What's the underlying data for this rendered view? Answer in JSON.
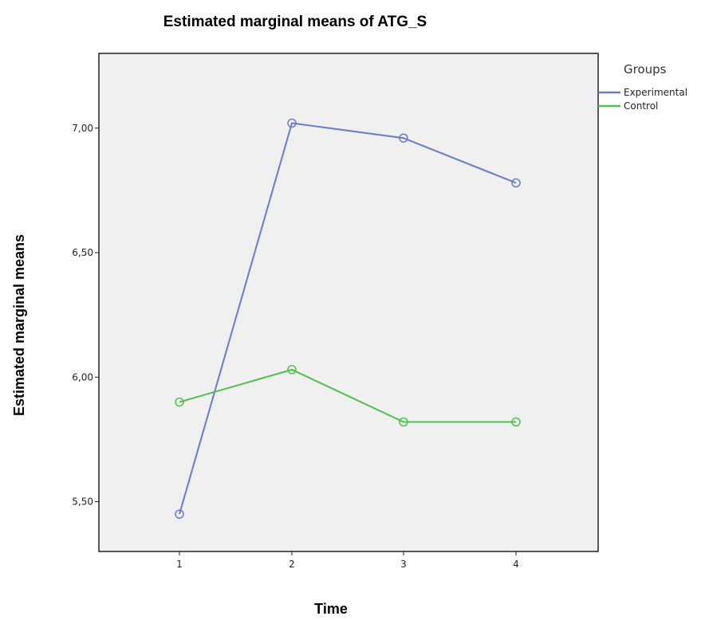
{
  "chart_data": {
    "type": "line",
    "title": "Estimated marginal means of ATG_S",
    "xlabel": "Time",
    "ylabel": "Estimated marginal means",
    "categories": [
      "1",
      "2",
      "3",
      "4"
    ],
    "ylim": [
      5.3,
      7.3
    ],
    "yticks": [
      5.5,
      6.0,
      6.5,
      7.0
    ],
    "ytick_labels": [
      "5,50",
      "6,00",
      "6,50",
      "7,00"
    ],
    "grid": false,
    "legend": {
      "title": "Groups",
      "position": "top-right"
    },
    "series": [
      {
        "name": "Experimental",
        "color": "#6a7cc8",
        "values": [
          5.45,
          7.02,
          6.96,
          6.78
        ]
      },
      {
        "name": "Control",
        "color": "#4fc04f",
        "values": [
          5.9,
          6.03,
          5.82,
          5.82
        ]
      }
    ]
  }
}
